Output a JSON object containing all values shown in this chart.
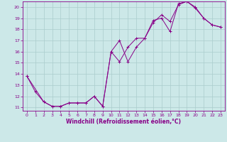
{
  "xlabel": "Windchill (Refroidissement éolien,°C)",
  "xlim": [
    -0.5,
    23.5
  ],
  "ylim": [
    10.7,
    20.5
  ],
  "xticks": [
    0,
    1,
    2,
    3,
    4,
    5,
    6,
    7,
    8,
    9,
    10,
    11,
    12,
    13,
    14,
    15,
    16,
    17,
    18,
    19,
    20,
    21,
    22,
    23
  ],
  "yticks": [
    11,
    12,
    13,
    14,
    15,
    16,
    17,
    18,
    19,
    20
  ],
  "bg_color": "#cce8e8",
  "grid_color": "#aacccc",
  "line_color": "#880088",
  "line1_x": [
    0,
    1,
    2,
    3,
    4,
    5,
    6,
    7,
    8,
    9,
    10,
    11,
    12,
    13,
    14,
    15,
    16,
    17,
    18,
    19,
    20,
    21,
    22,
    23
  ],
  "line1_y": [
    13.8,
    12.4,
    11.5,
    11.1,
    11.1,
    11.4,
    11.4,
    11.4,
    12.0,
    11.1,
    16.0,
    17.0,
    15.1,
    16.4,
    17.2,
    18.6,
    19.3,
    18.7,
    20.2,
    20.5,
    19.9,
    19.0,
    18.4,
    18.2
  ],
  "line2_x": [
    0,
    2,
    3,
    4,
    5,
    6,
    7,
    8,
    9,
    10,
    11,
    12,
    13,
    14,
    15,
    16,
    17,
    18,
    19,
    20,
    21,
    22,
    23
  ],
  "line2_y": [
    13.8,
    11.5,
    11.1,
    11.1,
    11.4,
    11.4,
    11.4,
    12.0,
    11.1,
    16.0,
    15.1,
    16.4,
    17.2,
    17.2,
    18.8,
    19.0,
    17.8,
    20.3,
    20.5,
    20.0,
    19.0,
    18.4,
    18.2
  ]
}
